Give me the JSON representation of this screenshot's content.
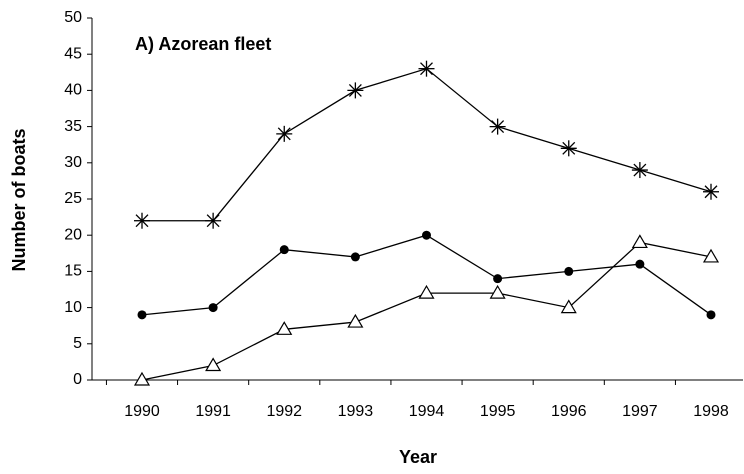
{
  "chart_data": {
    "type": "line",
    "title": "A)  Azorean fleet",
    "x_label": "Year",
    "y_label": "Number of boats",
    "categories": [
      "1990",
      "1991",
      "1992",
      "1993",
      "1994",
      "1995",
      "1996",
      "1997",
      "1998"
    ],
    "series": [
      {
        "color": "#000000",
        "marker": "star",
        "values": [
          22,
          22,
          34,
          40,
          43,
          35,
          32,
          29,
          26
        ]
      },
      {
        "color": "#000000",
        "marker": "circle",
        "values": [
          9,
          10,
          18,
          17,
          20,
          14,
          15,
          16,
          9
        ]
      },
      {
        "color": "#000000",
        "marker": "triangle",
        "values": [
          0,
          2,
          7,
          8,
          12,
          12,
          10,
          19,
          17
        ]
      }
    ],
    "ylim": [
      0,
      50
    ],
    "yticks": [
      0,
      5,
      10,
      15,
      20,
      25,
      30,
      35,
      40,
      45,
      50
    ],
    "grid": false
  }
}
